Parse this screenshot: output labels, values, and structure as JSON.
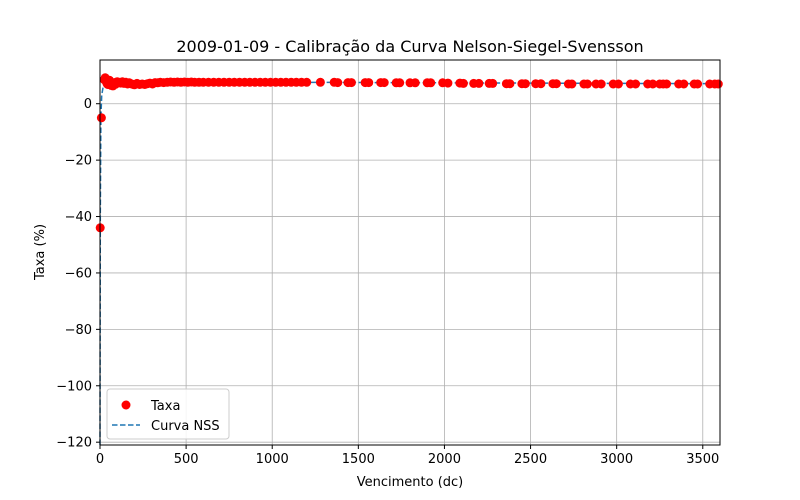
{
  "chart_data": {
    "type": "scatter",
    "title": "2009-01-09 - Calibração da Curva Nelson-Siegel-Svensson",
    "xlabel": "Vencimento (dc)",
    "ylabel": "Taxa (%)",
    "xlim": [
      0,
      3600
    ],
    "ylim": [
      -121,
      15.5
    ],
    "xticks": [
      0,
      500,
      1000,
      1500,
      2000,
      2500,
      3000,
      3500
    ],
    "yticks": [
      0,
      -20,
      -40,
      -60,
      -80,
      -100,
      -120
    ],
    "ytick_labels": [
      "0",
      "−20",
      "−40",
      "−60",
      "−80",
      "−100",
      "−120"
    ],
    "grid": true,
    "legend_position": "bottom-left",
    "series": [
      {
        "name": "Taxa",
        "kind": "scatter",
        "color": "#ff0000",
        "x": [
          1,
          8,
          25,
          30,
          35,
          40,
          45,
          50,
          55,
          60,
          65,
          70,
          75,
          80,
          85,
          90,
          95,
          100,
          110,
          120,
          130,
          140,
          150,
          160,
          170,
          180,
          190,
          200,
          215,
          230,
          245,
          260,
          275,
          290,
          305,
          320,
          335,
          350,
          370,
          390,
          410,
          430,
          450,
          470,
          490,
          510,
          530,
          550,
          575,
          600,
          630,
          660,
          690,
          720,
          750,
          780,
          810,
          840,
          870,
          900,
          930,
          960,
          990,
          1020,
          1050,
          1080,
          1110,
          1140,
          1170,
          1200,
          1280,
          1360,
          1380,
          1440,
          1460,
          1540,
          1560,
          1630,
          1650,
          1720,
          1740,
          1800,
          1830,
          1900,
          1920,
          1990,
          2020,
          2090,
          2110,
          2170,
          2200,
          2260,
          2280,
          2360,
          2380,
          2450,
          2470,
          2530,
          2560,
          2630,
          2650,
          2720,
          2740,
          2810,
          2830,
          2880,
          2910,
          2980,
          3010,
          3080,
          3110,
          3180,
          3210,
          3250,
          3270,
          3290,
          3360,
          3390,
          3450,
          3470,
          3540,
          3570,
          3590
        ],
        "y": [
          -44,
          -5,
          8.5,
          9.2,
          8.0,
          7.2,
          6.8,
          7.5,
          8.3,
          7.2,
          6.5,
          7.0,
          6.3,
          6.8,
          7.5,
          6.9,
          7.4,
          7.8,
          7.6,
          7.3,
          7.8,
          7.2,
          7.6,
          7.0,
          7.4,
          7.1,
          6.9,
          6.7,
          7.2,
          6.8,
          7.0,
          6.8,
          7.1,
          7.3,
          7.0,
          7.5,
          7.4,
          7.6,
          7.5,
          7.6,
          7.7,
          7.6,
          7.7,
          7.6,
          7.7,
          7.6,
          7.7,
          7.6,
          7.6,
          7.6,
          7.6,
          7.6,
          7.6,
          7.6,
          7.6,
          7.6,
          7.6,
          7.6,
          7.6,
          7.6,
          7.6,
          7.6,
          7.6,
          7.6,
          7.6,
          7.6,
          7.6,
          7.6,
          7.6,
          7.6,
          7.6,
          7.6,
          7.5,
          7.5,
          7.5,
          7.5,
          7.5,
          7.5,
          7.5,
          7.4,
          7.4,
          7.4,
          7.4,
          7.4,
          7.4,
          7.4,
          7.3,
          7.3,
          7.2,
          7.2,
          7.2,
          7.2,
          7.2,
          7.1,
          7.1,
          7.1,
          7.1,
          7.1,
          7.1,
          7.1,
          7.1,
          7.0,
          7.0,
          7.0,
          7.0,
          7.0,
          7.0,
          7.0,
          7.0,
          7.0,
          7.0,
          7.0,
          7.0,
          7.0,
          7.0,
          7.0,
          7.0,
          7.0,
          7.0,
          7.0,
          7.0,
          7.0,
          7.0
        ]
      },
      {
        "name": "Curva NSS",
        "kind": "line",
        "style": "dashed",
        "color": "#1f77b4",
        "x": [
          0,
          2,
          5,
          10,
          20,
          30,
          50,
          80,
          120,
          200,
          300,
          500,
          800,
          1200,
          1600,
          2000,
          2500,
          3000,
          3600
        ],
        "y": [
          -121,
          -40,
          -5,
          3,
          6.5,
          7.2,
          7.5,
          7.4,
          7.3,
          7.3,
          7.4,
          7.6,
          7.6,
          7.6,
          7.5,
          7.4,
          7.3,
          7.2,
          7.1
        ]
      }
    ]
  }
}
